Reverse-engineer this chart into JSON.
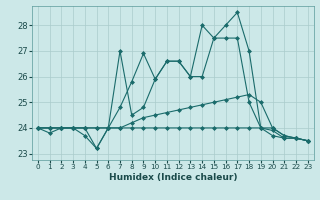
{
  "xlabel": "Humidex (Indice chaleur)",
  "bg_color": "#cce8e8",
  "grid_color": "#aacccc",
  "line_color": "#1a6b6b",
  "xlim": [
    -0.5,
    23.5
  ],
  "ylim": [
    22.75,
    28.75
  ],
  "yticks": [
    23,
    24,
    25,
    26,
    27,
    28
  ],
  "xticks": [
    0,
    1,
    2,
    3,
    4,
    5,
    6,
    7,
    8,
    9,
    10,
    11,
    12,
    13,
    14,
    15,
    16,
    17,
    18,
    19,
    20,
    21,
    22,
    23
  ],
  "series": [
    [
      24.0,
      23.8,
      24.0,
      24.0,
      24.0,
      23.2,
      24.0,
      24.8,
      25.8,
      26.9,
      25.9,
      26.6,
      26.6,
      26.0,
      28.0,
      27.5,
      28.0,
      28.5,
      27.0,
      24.0,
      23.7,
      23.6,
      23.6,
      23.5
    ],
    [
      24.0,
      24.0,
      24.0,
      24.0,
      23.7,
      23.2,
      24.0,
      27.0,
      24.5,
      24.8,
      25.9,
      26.6,
      26.6,
      26.0,
      26.0,
      27.5,
      27.5,
      27.5,
      25.0,
      24.0,
      23.9,
      23.6,
      23.6,
      23.5
    ],
    [
      24.0,
      24.0,
      24.0,
      24.0,
      24.0,
      24.0,
      24.0,
      24.0,
      24.2,
      24.4,
      24.5,
      24.6,
      24.7,
      24.8,
      24.9,
      25.0,
      25.1,
      25.2,
      25.3,
      25.0,
      24.0,
      23.7,
      23.6,
      23.5
    ],
    [
      24.0,
      24.0,
      24.0,
      24.0,
      24.0,
      24.0,
      24.0,
      24.0,
      24.0,
      24.0,
      24.0,
      24.0,
      24.0,
      24.0,
      24.0,
      24.0,
      24.0,
      24.0,
      24.0,
      24.0,
      24.0,
      23.7,
      23.6,
      23.5
    ]
  ]
}
